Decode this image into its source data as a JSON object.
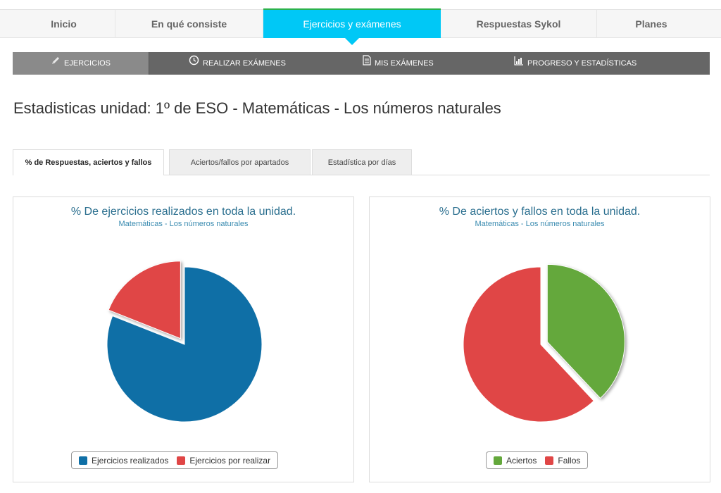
{
  "topnav": {
    "items": [
      {
        "label": "Inicio"
      },
      {
        "label": "En qué consiste"
      },
      {
        "label": "Ejercicios y exámenes"
      },
      {
        "label": "Respuestas Sykol"
      },
      {
        "label": "Planes"
      }
    ],
    "active_index": 2
  },
  "subnav": {
    "items": [
      {
        "label": "Ejercicios",
        "icon": "pencil-icon"
      },
      {
        "label": "Realizar exámenes",
        "icon": "clock-icon"
      },
      {
        "label": "Mis exámenes",
        "icon": "document-icon"
      },
      {
        "label": "Progreso y estadísticas",
        "icon": "chart-icon"
      }
    ],
    "active_index": 0
  },
  "page": {
    "title": "Estadisticas unidad: 1º de ESO - Matemáticas - Los números naturales"
  },
  "tabs": [
    {
      "label": "% de Respuestas, aciertos y fallos"
    },
    {
      "label": "Aciertos/fallos por apartados"
    },
    {
      "label": "Estadística por días"
    }
  ],
  "colors": {
    "accent": "#00c8f6",
    "blue": "#0f6fa6",
    "red": "#e04646",
    "green": "#64a83c"
  },
  "chart_data": [
    {
      "type": "pie",
      "title": "% De ejercicios realizados en toda la unidad.",
      "subtitle": "Matemáticas - Los números naturales",
      "legend_position": "bottom-center",
      "slices": [
        {
          "name": "Ejercicios realizados",
          "value": 81,
          "color": "#0f6fa6"
        },
        {
          "name": "Ejercicios por realizar",
          "value": 19,
          "color": "#e04646",
          "exploded": true
        }
      ]
    },
    {
      "type": "pie",
      "title": "% De aciertos y fallos en toda la unidad.",
      "subtitle": "Matemáticas - Los números naturales",
      "legend_position": "bottom-center",
      "slices": [
        {
          "name": "Aciertos",
          "value": 38,
          "color": "#64a83c",
          "exploded": true
        },
        {
          "name": "Fallos",
          "value": 62,
          "color": "#e04646"
        }
      ]
    }
  ]
}
